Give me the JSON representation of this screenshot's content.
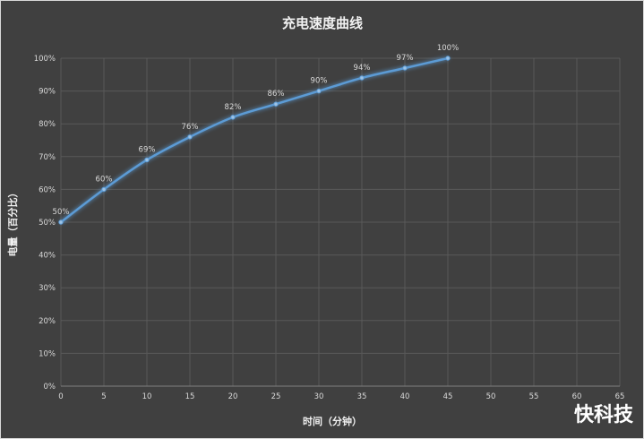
{
  "chart_data": {
    "type": "line",
    "title": "充电速度曲线",
    "xlabel": "时间（分钟）",
    "ylabel": "电量（百分比）",
    "x": [
      0,
      5,
      10,
      15,
      20,
      25,
      30,
      35,
      40,
      45
    ],
    "series": [
      {
        "values": [
          50,
          60,
          69,
          76,
          82,
          86,
          90,
          94,
          97,
          100
        ],
        "data_labels": [
          "50%",
          "60%",
          "69%",
          "76%",
          "82%",
          "86%",
          "90%",
          "94%",
          "97%",
          "100%"
        ],
        "color": "#5b9bd5"
      }
    ],
    "xlim": [
      0,
      65
    ],
    "ylim": [
      0,
      100
    ],
    "x_ticks": [
      "0",
      "5",
      "10",
      "15",
      "20",
      "25",
      "30",
      "35",
      "40",
      "45",
      "50",
      "55",
      "60",
      "65"
    ],
    "y_ticks": [
      "0%",
      "10%",
      "20%",
      "30%",
      "40%",
      "50%",
      "60%",
      "70%",
      "80%",
      "90%",
      "100%"
    ],
    "grid": true,
    "legend": "none",
    "background_color": "#404040",
    "grid_color": "#595959"
  },
  "watermark": {
    "text": "快科技"
  }
}
